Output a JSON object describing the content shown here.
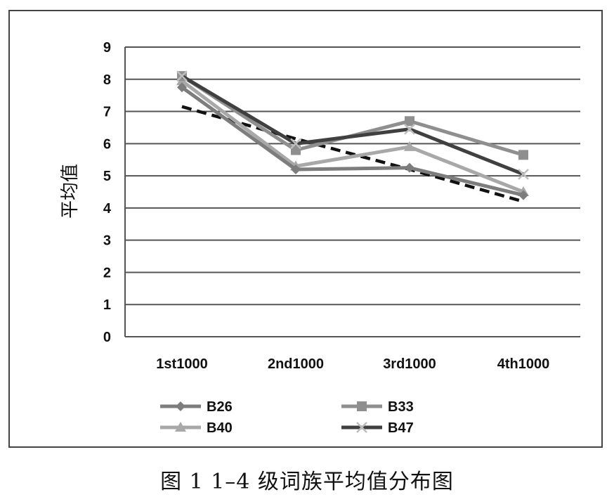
{
  "caption": "图 1  1–4 级词族平均值分布图",
  "chart_data": {
    "type": "line",
    "ylabel": "平均值",
    "xlabel": "",
    "ylim": [
      0,
      9
    ],
    "yticks": [
      "0",
      "1",
      "2",
      "3",
      "4",
      "5",
      "6",
      "7",
      "8",
      "9"
    ],
    "categories": [
      "1st1000",
      "2nd1000",
      "3rd1000",
      "4th1000"
    ],
    "grid": true,
    "legend_position": "bottom",
    "series": [
      {
        "name": "B26",
        "values": [
          7.75,
          5.2,
          5.25,
          4.4
        ],
        "color": "#7d7d7d",
        "marker": "diamond"
      },
      {
        "name": "B33",
        "values": [
          8.1,
          5.8,
          6.7,
          5.65
        ],
        "color": "#8f8f8f",
        "marker": "square"
      },
      {
        "name": "B40",
        "values": [
          7.95,
          5.3,
          5.9,
          4.5
        ],
        "color": "#a8a8a8",
        "marker": "triangle"
      },
      {
        "name": "B47",
        "values": [
          8.1,
          6.0,
          6.45,
          5.05
        ],
        "color": "#404040",
        "marker": "x"
      }
    ],
    "trendline": {
      "values": [
        7.15,
        6.15,
        5.2,
        4.2
      ],
      "color": "#111111",
      "style": "dashed"
    }
  }
}
